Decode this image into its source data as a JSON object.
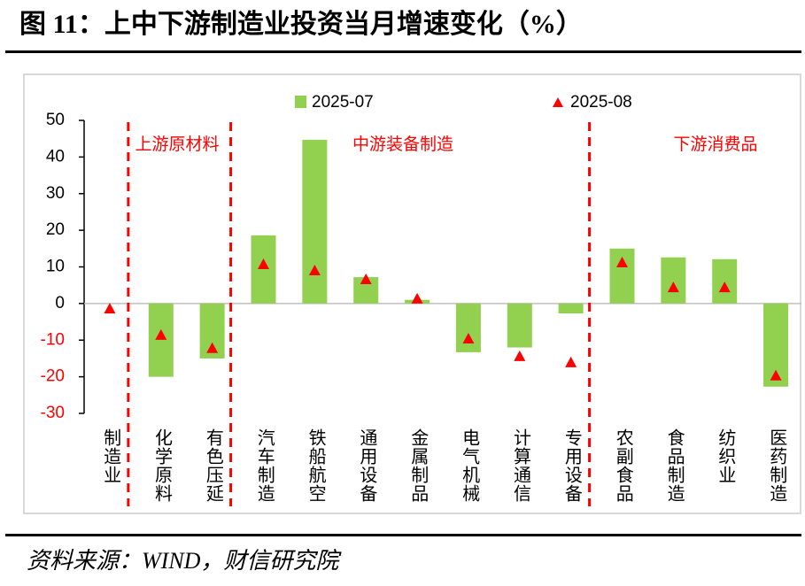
{
  "chart_data": {
    "type": "bar",
    "title": "图 11：上中下游制造业投资当月增速变化（%）",
    "source": "资料来源：WIND，财信研究院",
    "categories": [
      "制造业",
      "化学原料",
      "有色压延",
      "汽车制造",
      "铁船航空",
      "通用设备",
      "金属制品",
      "电气机械",
      "计算通信",
      "专用设备",
      "农副食品",
      "食品制造",
      "纺织业",
      "医药制造"
    ],
    "series": [
      {
        "name": "2025-07",
        "color": "#92d050",
        "marker": "bar",
        "values": [
          null,
          -20,
          -15,
          18.6,
          44.7,
          7.2,
          1,
          -13.3,
          -12,
          -2.7,
          15,
          12.6,
          12.1,
          -22.7
        ]
      },
      {
        "name": "2025-08",
        "color": "#ff0000",
        "marker": "triangle",
        "values": [
          -1.5,
          -8.7,
          -12.3,
          10.6,
          8.9,
          6.5,
          1.2,
          -9.7,
          -14.5,
          -16.2,
          11.1,
          4.3,
          4.3,
          -19.8
        ]
      }
    ],
    "annotations": [
      "上游原材料",
      "中游装备制造",
      "下游消费品"
    ],
    "ylim": [
      -30,
      50
    ],
    "yticks": [
      -30,
      -20,
      -10,
      0,
      10,
      20,
      30,
      40,
      50
    ],
    "negative_tick_color": "#ff0000"
  }
}
